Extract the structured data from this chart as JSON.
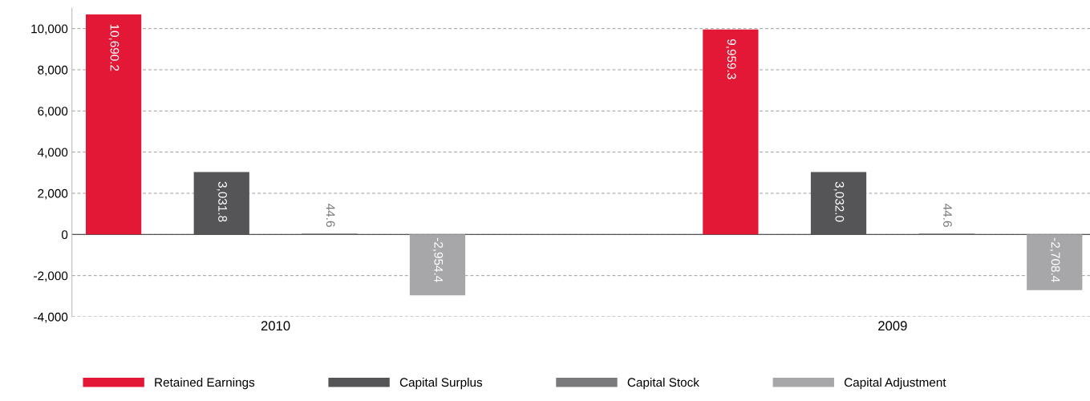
{
  "chart_data": {
    "type": "bar",
    "categories": [
      "2010",
      "2009"
    ],
    "series": [
      {
        "name": "Retained Earnings",
        "color": "#e31837",
        "values": [
          10690.2,
          9959.3
        ],
        "value_labels": [
          "10,690.2",
          "9,959.3"
        ]
      },
      {
        "name": "Capital Surplus",
        "color": "#555558",
        "values": [
          3031.8,
          3032.0
        ],
        "value_labels": [
          "3,031.8",
          "3,032.0"
        ]
      },
      {
        "name": "Capital Stock",
        "color": "#7a7a7d",
        "values": [
          44.6,
          44.6
        ],
        "value_labels": [
          "44.6",
          "44.6"
        ]
      },
      {
        "name": "Capital Adjustment",
        "color": "#a7a7aa",
        "values": [
          -2954.4,
          -2708.4
        ],
        "value_labels": [
          "-2,954.4",
          "-2,708.4"
        ]
      }
    ],
    "ylim": [
      -4000,
      11000
    ],
    "yticks": [
      {
        "value": -4000,
        "label": "-4,000"
      },
      {
        "value": -2000,
        "label": "-2,000"
      },
      {
        "value": 0,
        "label": "0"
      },
      {
        "value": 2000,
        "label": "2,000"
      },
      {
        "value": 4000,
        "label": "4,000"
      },
      {
        "value": 6000,
        "label": "6,000"
      },
      {
        "value": 8000,
        "label": "8,000"
      },
      {
        "value": 10000,
        "label": "10,000"
      }
    ],
    "grid": "y",
    "legend": "bottom"
  }
}
